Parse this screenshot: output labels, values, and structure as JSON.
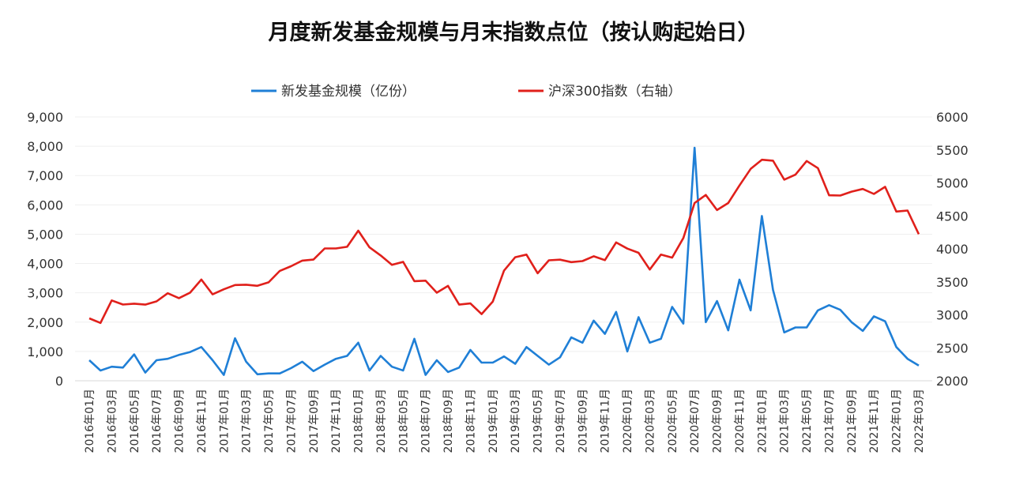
{
  "chart_data": {
    "type": "line",
    "title": "月度新发基金规模与月末指数点位（按认购起始日）",
    "x": [
      "2016年01月",
      "2016年02月",
      "2016年03月",
      "2016年04月",
      "2016年05月",
      "2016年06月",
      "2016年07月",
      "2016年08月",
      "2016年09月",
      "2016年10月",
      "2016年11月",
      "2016年12月",
      "2017年01月",
      "2017年02月",
      "2017年03月",
      "2017年04月",
      "2017年05月",
      "2017年06月",
      "2017年07月",
      "2017年08月",
      "2017年09月",
      "2017年10月",
      "2017年11月",
      "2017年12月",
      "2018年01月",
      "2018年02月",
      "2018年03月",
      "2018年04月",
      "2018年05月",
      "2018年06月",
      "2018年07月",
      "2018年08月",
      "2018年09月",
      "2018年10月",
      "2018年11月",
      "2018年12月",
      "2019年01月",
      "2019年02月",
      "2019年03月",
      "2019年04月",
      "2019年05月",
      "2019年06月",
      "2019年07月",
      "2019年08月",
      "2019年09月",
      "2019年10月",
      "2019年11月",
      "2019年12月",
      "2020年01月",
      "2020年02月",
      "2020年03月",
      "2020年04月",
      "2020年05月",
      "2020年06月",
      "2020年07月",
      "2020年08月",
      "2020年09月",
      "2020年10月",
      "2020年11月",
      "2020年12月",
      "2021年01月",
      "2021年02月",
      "2021年03月",
      "2021年04月",
      "2021年05月",
      "2021年06月",
      "2021年07月",
      "2021年08月",
      "2021年09月",
      "2021年10月",
      "2021年11月",
      "2021年12月",
      "2022年01月",
      "2022年02月",
      "2022年03月"
    ],
    "series": [
      {
        "name": "新发基金规模（亿份）",
        "axis": "left",
        "color": "#1f7fd6",
        "values": [
          700,
          350,
          480,
          450,
          900,
          280,
          700,
          750,
          880,
          980,
          1150,
          700,
          200,
          1450,
          650,
          220,
          250,
          250,
          430,
          650,
          330,
          550,
          750,
          850,
          1300,
          350,
          850,
          480,
          350,
          1430,
          200,
          700,
          300,
          450,
          1050,
          620,
          620,
          830,
          580,
          1150,
          850,
          550,
          800,
          1480,
          1300,
          2050,
          1600,
          2350,
          1000,
          2170,
          1300,
          1430,
          2520,
          1950,
          7950,
          2000,
          2720,
          1720,
          3450,
          2400,
          5620,
          3100,
          1650,
          1820,
          1820,
          2400,
          2580,
          2420,
          2000,
          1700,
          2200,
          2030,
          1150,
          750,
          520
        ]
      },
      {
        "name": "沪深300指数（右轴）",
        "axis": "right",
        "color": "#e0201b",
        "values": [
          2946,
          2877,
          3218,
          3156,
          3169,
          3154,
          3203,
          3327,
          3253,
          3336,
          3534,
          3310,
          3387,
          3452,
          3456,
          3439,
          3492,
          3666,
          3737,
          3822,
          3837,
          4006,
          4006,
          4031,
          4275,
          4023,
          3899,
          3757,
          3802,
          3510,
          3517,
          3335,
          3438,
          3154,
          3172,
          3011,
          3201,
          3670,
          3873,
          3913,
          3630,
          3826,
          3836,
          3799,
          3814,
          3887,
          3829,
          4097,
          4003,
          3940,
          3686,
          3912,
          3867,
          4164,
          4695,
          4817,
          4588,
          4695,
          4960,
          5212,
          5351,
          5336,
          5049,
          5124,
          5332,
          5224,
          4812,
          4808,
          4867,
          4908,
          4832,
          4940,
          4565,
          4581,
          4223
        ]
      }
    ],
    "y_left": {
      "range": [
        0,
        9000
      ],
      "ticks": [
        "0",
        "1,000",
        "2,000",
        "3,000",
        "4,000",
        "5,000",
        "6,000",
        "7,000",
        "8,000",
        "9,000"
      ]
    },
    "y_right": {
      "range": [
        2000,
        6000
      ],
      "ticks": [
        "2000",
        "2500",
        "3000",
        "3500",
        "4000",
        "4500",
        "5000",
        "5500",
        "6000"
      ]
    },
    "x_tick_every": 2,
    "grid": true,
    "legend_position": "top"
  }
}
